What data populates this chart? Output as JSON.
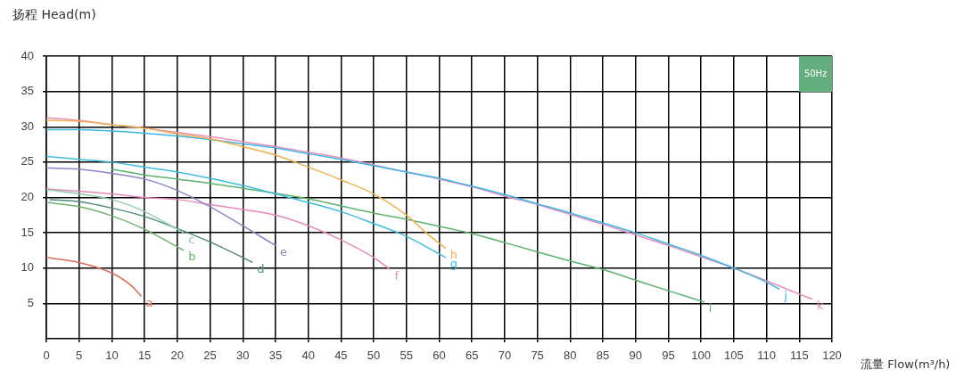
{
  "chart_data": {
    "type": "line",
    "xlabel": "流量 Flow(m³/h)",
    "ylabel": "扬程 Head(m)",
    "annotations": [
      "50Hz"
    ],
    "xlim": [
      0,
      120
    ],
    "xticks": [
      0,
      5,
      10,
      15,
      20,
      25,
      30,
      35,
      40,
      45,
      50,
      55,
      60,
      65,
      70,
      75,
      80,
      85,
      90,
      95,
      100,
      105,
      110,
      115,
      120
    ],
    "ylim": [
      0,
      40
    ],
    "yticks": [
      5,
      10,
      15,
      20,
      25,
      30,
      35,
      40
    ],
    "grid": true,
    "legend": false,
    "marker": "none",
    "line_style": "solid",
    "series": [
      {
        "name": "a",
        "color": "#e06c5a",
        "x": [
          0,
          5,
          10,
          13,
          14.5
        ],
        "values": [
          11.5,
          10.8,
          9.3,
          7.5,
          6
        ]
      },
      {
        "name": "b",
        "color": "#6db36d",
        "x": [
          0,
          5,
          10,
          15,
          20,
          21
        ],
        "values": [
          19.3,
          18.7,
          17.4,
          15.5,
          13,
          12.5
        ]
      },
      {
        "name": "c",
        "color": "#8fcfa8",
        "x": [
          0,
          5,
          10,
          15,
          20,
          21
        ],
        "values": [
          21.1,
          20.5,
          19.7,
          18,
          15.5,
          15
        ]
      },
      {
        "name": "d",
        "color": "#4c8a7e",
        "x": [
          0.5,
          5,
          10,
          15,
          20,
          25,
          30,
          31.5
        ],
        "values": [
          19.7,
          19.4,
          18.5,
          17.3,
          15.6,
          13.7,
          11.5,
          10.8
        ]
      },
      {
        "name": "e",
        "color": "#8888c8",
        "x": [
          0,
          5,
          10,
          15,
          20,
          25,
          30,
          35
        ],
        "values": [
          24.2,
          24,
          23.4,
          22.6,
          21,
          18.7,
          16,
          13.2
        ]
      },
      {
        "name": "f",
        "color": "#e88ab8",
        "x": [
          0,
          10,
          15,
          20,
          25,
          30,
          35,
          40,
          45,
          50,
          52.5
        ],
        "values": [
          21.2,
          20.5,
          20,
          19.7,
          19,
          18.3,
          17.5,
          16,
          14,
          11.5,
          9.8
        ]
      },
      {
        "name": "g",
        "color": "#3dbde0",
        "x": [
          0,
          5,
          10,
          15,
          20,
          25,
          30,
          35,
          40,
          45,
          50,
          55,
          60,
          61
        ],
        "values": [
          25.8,
          25.4,
          25,
          24.3,
          23.6,
          22.7,
          21.7,
          20.5,
          19.3,
          18,
          16.3,
          14.5,
          12,
          11.5
        ]
      },
      {
        "name": "h",
        "color": "#f0b050",
        "x": [
          0,
          5,
          10,
          15,
          20,
          25,
          30,
          35,
          40,
          45,
          50,
          55,
          58,
          61
        ],
        "values": [
          30.9,
          30.8,
          30.3,
          29.8,
          29,
          28.3,
          27.2,
          26,
          24.3,
          22.5,
          20.5,
          17.5,
          15,
          12.8
        ]
      },
      {
        "name": "l",
        "color": "#5cb370",
        "x": [
          10,
          15,
          20,
          25,
          30,
          35,
          40,
          45,
          50,
          55,
          60,
          65,
          70,
          75,
          80,
          85,
          90,
          95,
          100.5
        ],
        "values": [
          24,
          23.2,
          22.6,
          22,
          21.3,
          20.6,
          19.8,
          18.8,
          17.8,
          16.9,
          15.9,
          14.9,
          13.6,
          12.3,
          11,
          9.8,
          8.3,
          6.8,
          5.2
        ]
      },
      {
        "name": "j",
        "color": "#3db5e6",
        "x": [
          0,
          5,
          10,
          15,
          20,
          25,
          30,
          35,
          40,
          45,
          50,
          55,
          60,
          65,
          70,
          75,
          80,
          85,
          90,
          95,
          100,
          105,
          110,
          112
        ],
        "values": [
          29.6,
          29.6,
          29.4,
          29.1,
          28.7,
          28.2,
          27.6,
          27,
          26.2,
          25.4,
          24.5,
          23.6,
          22.7,
          21.6,
          20.4,
          19.1,
          17.8,
          16.4,
          15,
          13.4,
          11.8,
          10,
          8,
          7
        ]
      },
      {
        "name": "k",
        "color": "#e890b8",
        "x": [
          0,
          5,
          10,
          15,
          20,
          25,
          30,
          35,
          40,
          45,
          50,
          55,
          60,
          65,
          70,
          75,
          80,
          85,
          90,
          95,
          100,
          105,
          110,
          115,
          117
        ],
        "values": [
          31.3,
          30.9,
          30.3,
          29.8,
          29.2,
          28.6,
          27.9,
          27.2,
          26.4,
          25.6,
          24.6,
          23.6,
          22.6,
          21.5,
          20.2,
          19,
          17.6,
          16.2,
          14.7,
          13.2,
          11.6,
          10,
          8.2,
          6.3,
          5.6
        ]
      }
    ]
  }
}
